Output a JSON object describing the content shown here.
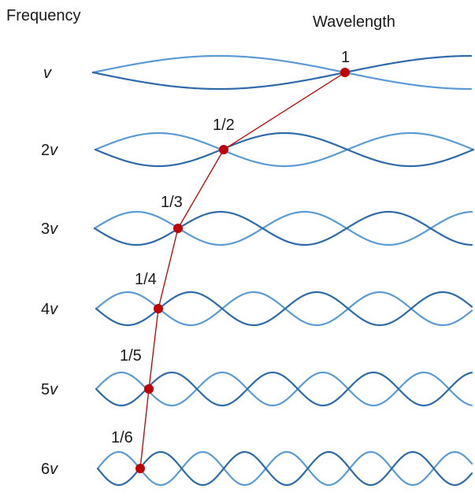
{
  "headers": {
    "frequency": "Frequency",
    "wavelength": "Wavelength"
  },
  "colors": {
    "wave_light": "#5b9bd5",
    "wave_dark": "#2e6aaa",
    "marker": "#c00000",
    "link": "#c00000"
  },
  "harmonics": [
    {
      "n": 1,
      "freq_coef": "",
      "freq_sym": "v",
      "wavelength": "1"
    },
    {
      "n": 2,
      "freq_coef": "2",
      "freq_sym": "v",
      "wavelength": "1/2"
    },
    {
      "n": 3,
      "freq_coef": "3",
      "freq_sym": "v",
      "wavelength": "1/3"
    },
    {
      "n": 4,
      "freq_coef": "4",
      "freq_sym": "v",
      "wavelength": "1/4"
    },
    {
      "n": 5,
      "freq_coef": "5",
      "freq_sym": "v",
      "wavelength": "1/5"
    },
    {
      "n": 6,
      "freq_coef": "6",
      "freq_sym": "v",
      "wavelength": "1/6"
    }
  ]
}
